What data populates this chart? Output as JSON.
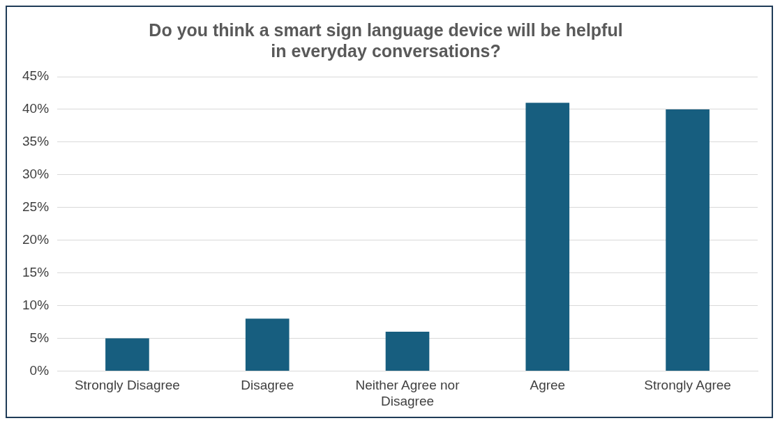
{
  "chart_data": {
    "type": "bar",
    "title": "Do you think a smart sign language device will be helpful\nin everyday conversations?",
    "categories": [
      "Strongly Disagree",
      "Disagree",
      "Neither Agree nor Disagree",
      "Agree",
      "Strongly Agree"
    ],
    "values": [
      5,
      8,
      6,
      41,
      40
    ],
    "color": "#175e7f",
    "ylim": [
      0,
      45
    ],
    "yticks": [
      {
        "value": 0,
        "label": "0%"
      },
      {
        "value": 5,
        "label": "5%"
      },
      {
        "value": 10,
        "label": "10%"
      },
      {
        "value": 15,
        "label": "15%"
      },
      {
        "value": 20,
        "label": "20%"
      },
      {
        "value": 25,
        "label": "25%"
      },
      {
        "value": 30,
        "label": "30%"
      },
      {
        "value": 35,
        "label": "35%"
      },
      {
        "value": 40,
        "label": "40%"
      },
      {
        "value": 45,
        "label": "45%"
      }
    ],
    "grid": "y",
    "legend": false
  }
}
